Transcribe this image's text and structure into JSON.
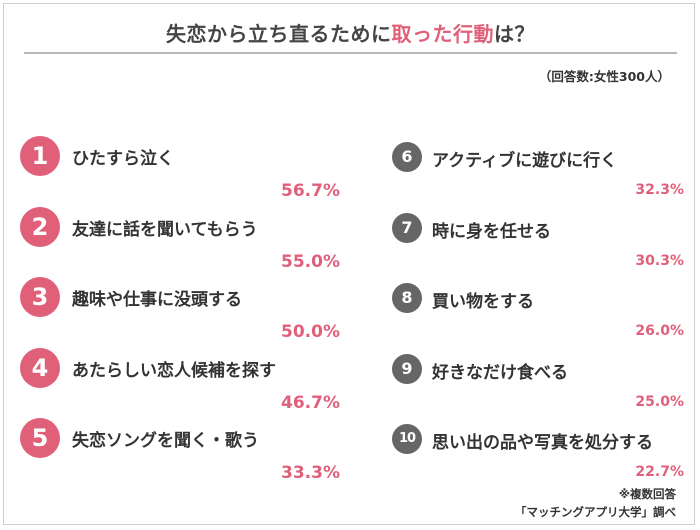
{
  "title": {
    "main": "失恋から立ち直るために",
    "accent": "取った行動",
    "suffix": "は？"
  },
  "sample_note": "（回答数:女性300人）",
  "footnote": "※複数回答",
  "source": "「マッチングアプリ大学」調べ",
  "colors": {
    "accent": "#e0607a",
    "badge_right": "#666666",
    "text": "#333333"
  },
  "chart_data": {
    "type": "table",
    "title": "失恋から立ち直るために取った行動は？",
    "categories": [
      "ひたすら泣く",
      "友達に話を聞いてもらう",
      "趣味や仕事に没頭する",
      "あたらしい恋人候補を探す",
      "失恋ソングを聞く・歌う",
      "アクティブに遊びに行く",
      "時に身を任せる",
      "買い物をする",
      "好きなだけ食べる",
      "思い出の品や写真を処分する"
    ],
    "values": [
      56.7,
      55.0,
      50.0,
      46.7,
      33.3,
      32.3,
      30.3,
      26.0,
      25.0,
      22.7
    ],
    "items": [
      {
        "rank": "1",
        "label": "ひたすら泣く",
        "value": "56.7%"
      },
      {
        "rank": "2",
        "label": "友達に話を聞いてもらう",
        "value": "55.0%"
      },
      {
        "rank": "3",
        "label": "趣味や仕事に没頭する",
        "value": "50.0%"
      },
      {
        "rank": "4",
        "label": "あたらしい恋人候補を探す",
        "value": "46.7%"
      },
      {
        "rank": "5",
        "label": "失恋ソングを聞く・歌う",
        "value": "33.3%"
      },
      {
        "rank": "6",
        "label": "アクティブに遊びに行く",
        "value": "32.3%"
      },
      {
        "rank": "7",
        "label": "時に身を任せる",
        "value": "30.3%"
      },
      {
        "rank": "8",
        "label": "買い物をする",
        "value": "26.0%"
      },
      {
        "rank": "9",
        "label": "好きなだけ食べる",
        "value": "25.0%"
      },
      {
        "rank": "10",
        "label": "思い出の品や写真を処分する",
        "value": "22.7%"
      }
    ]
  }
}
